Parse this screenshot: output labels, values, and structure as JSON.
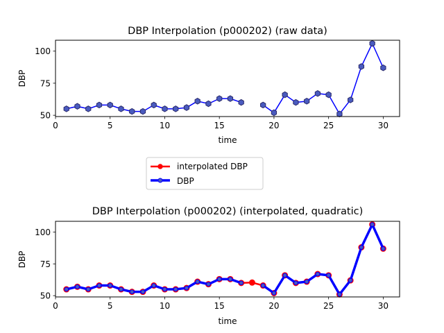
{
  "chart_data": [
    {
      "type": "line",
      "title": "DBP Interpolation (p000202) (raw data)",
      "xlabel": "time",
      "ylabel": "DBP",
      "xlim": [
        0,
        31.5
      ],
      "ylim": [
        49,
        108.5
      ],
      "xticks": [
        0,
        5,
        10,
        15,
        20,
        25,
        30
      ],
      "yticks": [
        50,
        75,
        100
      ],
      "grid": false,
      "series": [
        {
          "name": "DBP",
          "color": "#0000ff",
          "marker_fill": "#4a5bbf",
          "marker": "hexagon",
          "x": [
            1,
            2,
            3,
            4,
            5,
            6,
            7,
            8,
            9,
            10,
            11,
            12,
            13,
            14,
            15,
            16,
            17,
            18,
            19,
            20,
            21,
            22,
            23,
            24,
            25,
            26,
            27,
            28,
            29,
            30
          ],
          "y": [
            55,
            57,
            55,
            58,
            58,
            55,
            53,
            53,
            58,
            55,
            55,
            56,
            61,
            59,
            63,
            63,
            60,
            null,
            58,
            52,
            66,
            60,
            61,
            67,
            66,
            51,
            62,
            88,
            106,
            87
          ]
        }
      ]
    },
    {
      "type": "line",
      "title": "DBP Interpolation (p000202) (interpolated, quadratic)",
      "xlabel": "time",
      "ylabel": "DBP",
      "xlim": [
        0,
        31.5
      ],
      "ylim": [
        49,
        108.5
      ],
      "xticks": [
        0,
        5,
        10,
        15,
        20,
        25,
        30
      ],
      "yticks": [
        50,
        75,
        100
      ],
      "grid": false,
      "series": [
        {
          "name": "interpolated DBP",
          "color": "#ff0000",
          "marker": "circle",
          "x": [
            1,
            2,
            3,
            4,
            5,
            6,
            7,
            8,
            9,
            10,
            11,
            12,
            13,
            14,
            15,
            16,
            17,
            18,
            19,
            20,
            21,
            22,
            23,
            24,
            25,
            26,
            27,
            28,
            29,
            30
          ],
          "y": [
            55,
            57,
            55,
            58,
            58,
            55,
            53,
            53,
            58,
            55,
            55,
            56,
            61,
            59,
            63,
            63,
            60,
            60.3,
            58,
            52,
            66,
            60,
            61,
            67,
            66,
            51,
            62,
            88,
            106,
            87
          ]
        },
        {
          "name": "DBP",
          "color": "#0000ff",
          "marker": "circle",
          "x": [
            1,
            2,
            3,
            4,
            5,
            6,
            7,
            8,
            9,
            10,
            11,
            12,
            13,
            14,
            15,
            16,
            17,
            18,
            19,
            20,
            21,
            22,
            23,
            24,
            25,
            26,
            27,
            28,
            29,
            30
          ],
          "y": [
            55,
            57,
            55,
            58,
            58,
            55,
            53,
            53,
            58,
            55,
            55,
            56,
            61,
            59,
            63,
            63,
            60,
            null,
            58,
            52,
            66,
            60,
            61,
            67,
            66,
            51,
            62,
            88,
            106,
            87
          ]
        }
      ]
    }
  ],
  "legend": {
    "placement": "center",
    "items": [
      {
        "label": "interpolated DBP",
        "color": "#ff0000"
      },
      {
        "label": "DBP",
        "color": "#0000ff"
      }
    ]
  }
}
